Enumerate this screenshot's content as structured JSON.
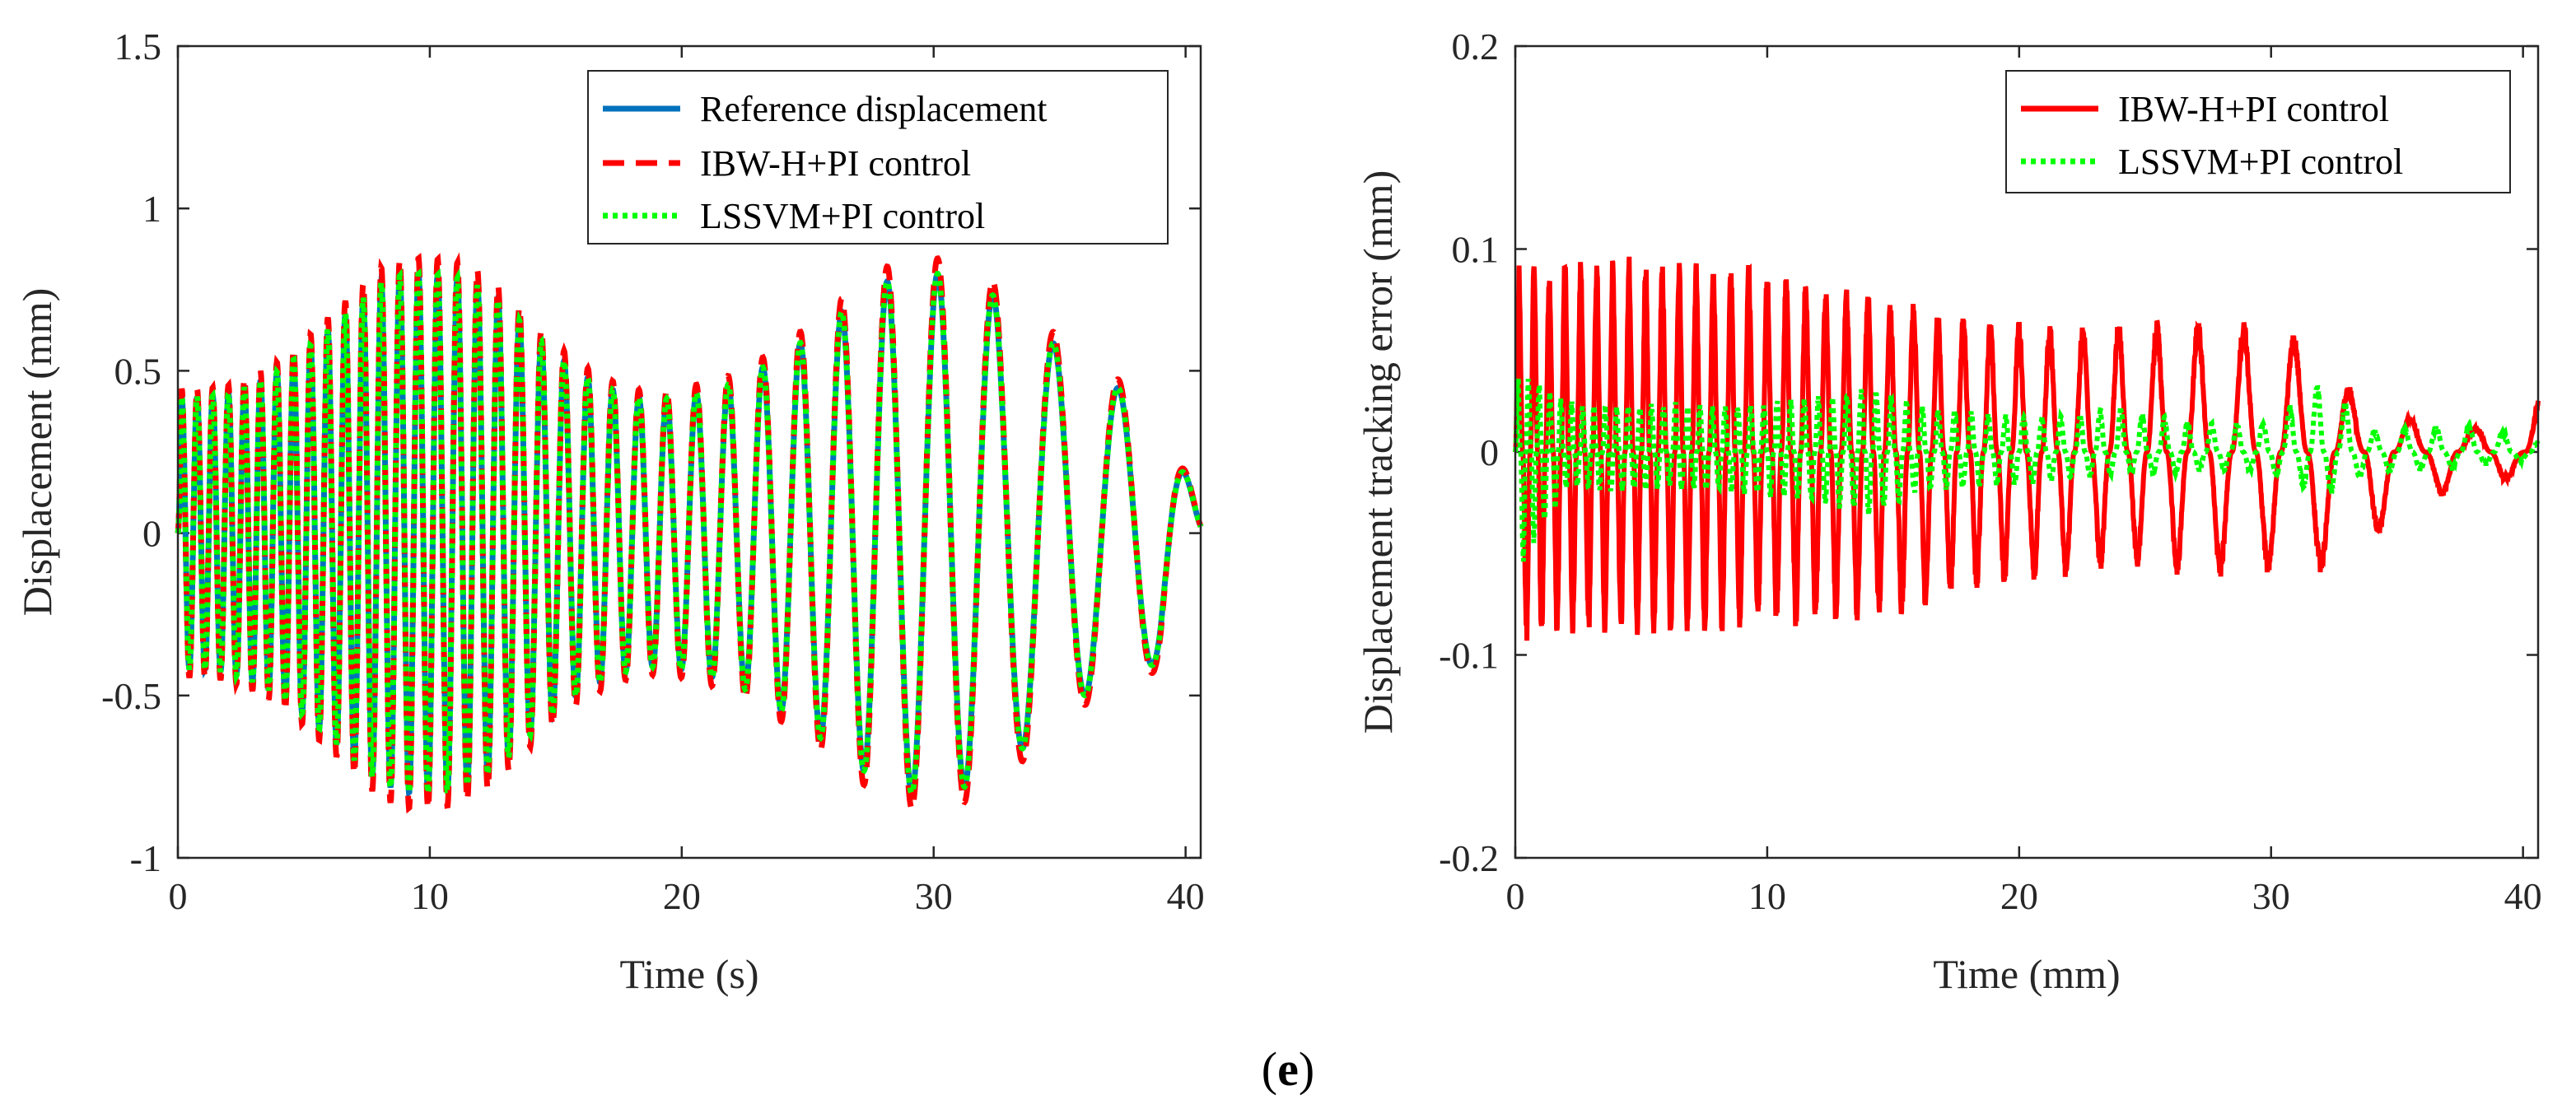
{
  "caption": {
    "prefix": "(",
    "letter": "e",
    "suffix": ")"
  },
  "colors": {
    "reference": "#0072BD",
    "ibw": "#FF0000",
    "lssvm": "#00FF00",
    "axis": "#262626"
  },
  "chart_data": [
    {
      "id": "left",
      "type": "line",
      "title": "",
      "xlabel": "Time (s)",
      "ylabel": "Displacement (mm)",
      "xlim": [
        0,
        40.6
      ],
      "ylim": [
        -1,
        1.5
      ],
      "xticks": [
        0,
        10,
        20,
        30,
        40
      ],
      "yticks": [
        -1,
        -0.5,
        0,
        0.5,
        1,
        1.5
      ],
      "xtick_labels": [
        "0",
        "10",
        "20",
        "30",
        "40"
      ],
      "ytick_labels": [
        "-1",
        "-0.5",
        "0",
        "0.5",
        "1",
        "1.5"
      ],
      "legend_position": "top-right",
      "envelope": {
        "t": [
          0,
          1,
          2,
          3,
          4,
          5,
          6,
          7,
          8,
          9,
          10,
          11,
          12,
          13,
          14,
          15,
          16,
          17,
          18,
          19,
          20,
          21,
          22,
          23,
          24,
          25,
          26,
          27,
          28,
          29,
          30,
          31,
          32,
          33,
          34,
          35,
          36,
          37,
          38,
          39,
          40.6
        ],
        "amplitude": [
          0.42,
          0.42,
          0.43,
          0.46,
          0.5,
          0.56,
          0.63,
          0.7,
          0.77,
          0.8,
          0.8,
          0.79,
          0.76,
          0.7,
          0.62,
          0.55,
          0.49,
          0.45,
          0.42,
          0.41,
          0.42,
          0.44,
          0.46,
          0.5,
          0.55,
          0.6,
          0.66,
          0.72,
          0.77,
          0.8,
          0.8,
          0.79,
          0.75,
          0.7,
          0.63,
          0.57,
          0.5,
          0.46,
          0.42,
          0.4,
          0.05
        ],
        "freq_hz": [
          1.65,
          1.62,
          1.59,
          1.56,
          1.52,
          1.48,
          1.45,
          1.41,
          1.38,
          1.35,
          1.31,
          1.27,
          1.23,
          1.19,
          1.15,
          1.1,
          1.05,
          1.0,
          0.95,
          0.9,
          0.85,
          0.8,
          0.75,
          0.71,
          0.67,
          0.63,
          0.59,
          0.56,
          0.53,
          0.5,
          0.48,
          0.46,
          0.44,
          0.42,
          0.41,
          0.4,
          0.39,
          0.38,
          0.37,
          0.36,
          0.35
        ]
      },
      "series": [
        {
          "name": "Reference displacement",
          "style": "solid",
          "gain": 1.0
        },
        {
          "name": "IBW-H+PI control",
          "style": "dashed",
          "gain": 1.06
        },
        {
          "name": "LSSVM+PI control",
          "style": "dotted",
          "gain": 1.0
        }
      ]
    },
    {
      "id": "right",
      "type": "line",
      "title": "",
      "xlabel": "Time (mm)",
      "ylabel": "Displacement tracking error (mm)",
      "xlim": [
        0,
        40.6
      ],
      "ylim": [
        -0.2,
        0.2
      ],
      "xticks": [
        0,
        10,
        20,
        30,
        40
      ],
      "yticks": [
        -0.2,
        -0.1,
        0,
        0.1,
        0.2
      ],
      "xtick_labels": [
        "0",
        "10",
        "20",
        "30",
        "40"
      ],
      "ytick_labels": [
        "-0.2",
        "-0.1",
        "0",
        "0.1",
        "0.2"
      ],
      "legend_position": "top-right",
      "series": [
        {
          "name": "IBW-H+PI control",
          "style": "solid",
          "t": [
            0,
            2,
            4,
            6,
            8,
            10,
            12,
            14,
            16,
            18,
            20,
            22,
            24,
            26,
            28,
            30,
            32,
            34,
            36,
            38,
            40,
            40.6
          ],
          "pos_peak": [
            0.1,
            0.105,
            0.105,
            0.104,
            0.102,
            0.1,
            0.09,
            0.087,
            0.08,
            0.074,
            0.07,
            0.07,
            0.07,
            0.07,
            0.072,
            0.068,
            0.06,
            0.015,
            0.02,
            0.012,
            0.038,
            0.035
          ],
          "neg_peak": [
            -0.105,
            -0.1,
            -0.1,
            -0.1,
            -0.098,
            -0.095,
            -0.093,
            -0.09,
            -0.088,
            -0.075,
            -0.07,
            -0.068,
            -0.06,
            -0.065,
            -0.068,
            -0.065,
            -0.065,
            -0.05,
            -0.015,
            -0.038,
            -0.005,
            0.0
          ],
          "freq_hz": [
            1.7,
            1.6,
            1.55,
            1.5,
            1.45,
            1.35,
            1.25,
            1.15,
            1.05,
            0.95,
            0.85,
            0.75,
            0.68,
            0.62,
            0.55,
            0.5,
            0.45,
            0.42,
            0.4,
            0.38,
            0.36,
            0.35
          ]
        },
        {
          "name": "LSSVM+PI control",
          "style": "dotted",
          "t": [
            0,
            2,
            4,
            6,
            8,
            10,
            12,
            14,
            16,
            18,
            20,
            22,
            24,
            26,
            28,
            30,
            32,
            34,
            36,
            38,
            40,
            40.6
          ],
          "pos_peak": [
            0.045,
            0.028,
            0.025,
            0.027,
            0.025,
            0.028,
            0.03,
            0.035,
            0.025,
            0.022,
            0.02,
            0.02,
            0.025,
            0.018,
            0.015,
            0.017,
            0.04,
            0.012,
            0.014,
            0.015,
            0.01,
            0.005
          ],
          "neg_peak": [
            -0.07,
            -0.02,
            -0.022,
            -0.02,
            -0.022,
            -0.024,
            -0.028,
            -0.035,
            -0.022,
            -0.02,
            -0.018,
            -0.015,
            -0.012,
            -0.012,
            -0.01,
            -0.012,
            -0.025,
            -0.012,
            -0.01,
            -0.008,
            -0.005,
            -0.002
          ],
          "freq_hz": [
            2.4,
            2.3,
            2.2,
            2.1,
            2.0,
            1.9,
            1.8,
            1.7,
            1.6,
            1.5,
            1.4,
            1.3,
            1.2,
            1.1,
            1.0,
            0.95,
            0.9,
            0.85,
            0.8,
            0.75,
            0.7,
            0.7
          ]
        }
      ]
    }
  ]
}
